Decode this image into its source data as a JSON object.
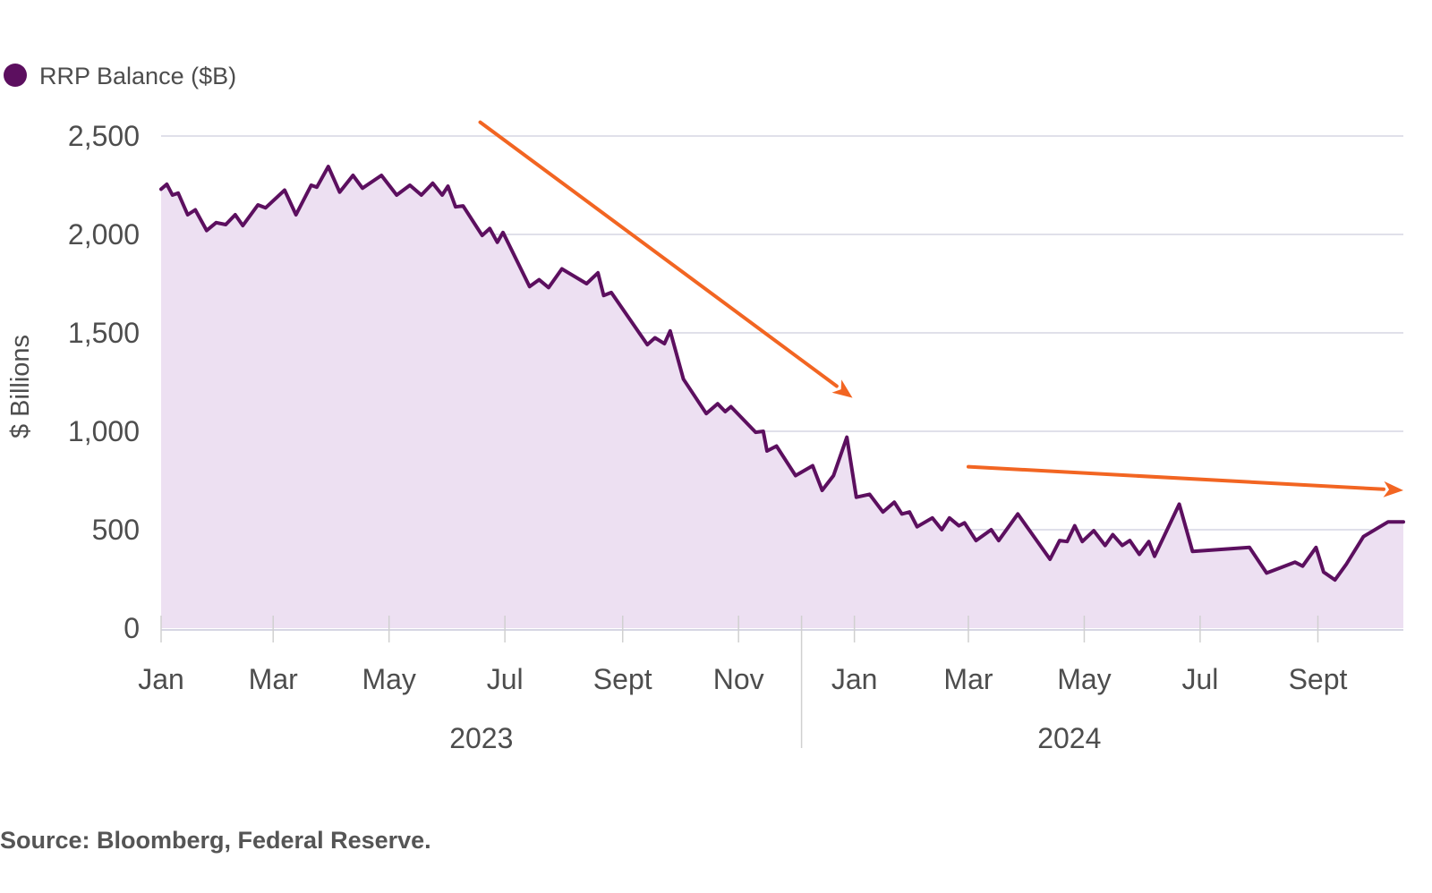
{
  "chart_data": {
    "type": "area",
    "legend": [
      {
        "name": "RRP Balance ($B)",
        "color": "#5c0f5f"
      }
    ],
    "legend_position": "top-left",
    "ylabel": "$ Billions",
    "ylim": [
      0,
      2500
    ],
    "yticks": [
      0,
      500,
      1000,
      1500,
      2000,
      2500
    ],
    "ytick_labels": [
      "0",
      "500",
      "1,000",
      "1,500",
      "2,000",
      "2,500"
    ],
    "grid": true,
    "xlim": [
      "2023-01-01",
      "2024-10-16"
    ],
    "xticks": [
      {
        "date": "2023-01-01",
        "label": "Jan"
      },
      {
        "date": "2023-03-01",
        "label": "Mar"
      },
      {
        "date": "2023-05-01",
        "label": "May"
      },
      {
        "date": "2023-07-01",
        "label": "Jul"
      },
      {
        "date": "2023-09-01",
        "label": "Sept"
      },
      {
        "date": "2023-11-01",
        "label": "Nov"
      },
      {
        "date": "2024-01-01",
        "label": "Jan"
      },
      {
        "date": "2024-03-01",
        "label": "Mar"
      },
      {
        "date": "2024-05-01",
        "label": "May"
      },
      {
        "date": "2024-07-01",
        "label": "Jul"
      },
      {
        "date": "2024-09-01",
        "label": "Sept"
      }
    ],
    "year_groups": [
      {
        "label": "2023",
        "start": "2023-01-01",
        "end": "2023-12-31"
      },
      {
        "label": "2024",
        "start": "2024-01-01",
        "end": "2024-10-16"
      }
    ],
    "series": [
      {
        "name": "RRP Balance ($B)",
        "color": "#5c0f5f",
        "fill": "#ede0f2",
        "points": [
          [
            "2023-01-01",
            2230
          ],
          [
            "2023-01-04",
            2255
          ],
          [
            "2023-01-07",
            2200
          ],
          [
            "2023-01-10",
            2210
          ],
          [
            "2023-01-15",
            2100
          ],
          [
            "2023-01-19",
            2125
          ],
          [
            "2023-01-25",
            2020
          ],
          [
            "2023-01-30",
            2060
          ],
          [
            "2023-02-04",
            2050
          ],
          [
            "2023-02-09",
            2100
          ],
          [
            "2023-02-13",
            2045
          ],
          [
            "2023-02-21",
            2150
          ],
          [
            "2023-02-25",
            2135
          ],
          [
            "2023-03-07",
            2225
          ],
          [
            "2023-03-13",
            2100
          ],
          [
            "2023-03-21",
            2250
          ],
          [
            "2023-03-24",
            2240
          ],
          [
            "2023-03-30",
            2345
          ],
          [
            "2023-04-05",
            2215
          ],
          [
            "2023-04-12",
            2300
          ],
          [
            "2023-04-17",
            2235
          ],
          [
            "2023-04-27",
            2300
          ],
          [
            "2023-05-05",
            2200
          ],
          [
            "2023-05-12",
            2250
          ],
          [
            "2023-05-18",
            2200
          ],
          [
            "2023-05-24",
            2260
          ],
          [
            "2023-05-29",
            2200
          ],
          [
            "2023-06-01",
            2245
          ],
          [
            "2023-06-05",
            2140
          ],
          [
            "2023-06-09",
            2145
          ],
          [
            "2023-06-19",
            1995
          ],
          [
            "2023-06-23",
            2030
          ],
          [
            "2023-06-27",
            1960
          ],
          [
            "2023-06-30",
            2010
          ],
          [
            "2023-07-14",
            1735
          ],
          [
            "2023-07-19",
            1770
          ],
          [
            "2023-07-24",
            1730
          ],
          [
            "2023-07-31",
            1825
          ],
          [
            "2023-08-13",
            1750
          ],
          [
            "2023-08-19",
            1805
          ],
          [
            "2023-08-22",
            1690
          ],
          [
            "2023-08-26",
            1705
          ],
          [
            "2023-09-14",
            1440
          ],
          [
            "2023-09-18",
            1475
          ],
          [
            "2023-09-23",
            1445
          ],
          [
            "2023-09-26",
            1510
          ],
          [
            "2023-10-03",
            1265
          ],
          [
            "2023-10-15",
            1090
          ],
          [
            "2023-10-21",
            1140
          ],
          [
            "2023-10-25",
            1100
          ],
          [
            "2023-10-28",
            1125
          ],
          [
            "2023-11-10",
            995
          ],
          [
            "2023-11-14",
            1000
          ],
          [
            "2023-11-16",
            900
          ],
          [
            "2023-11-21",
            925
          ],
          [
            "2023-12-01",
            775
          ],
          [
            "2023-12-10",
            825
          ],
          [
            "2023-12-15",
            700
          ],
          [
            "2023-12-21",
            775
          ],
          [
            "2023-12-28",
            970
          ],
          [
            "2024-01-02",
            665
          ],
          [
            "2024-01-09",
            680
          ],
          [
            "2024-01-16",
            590
          ],
          [
            "2024-01-22",
            640
          ],
          [
            "2024-01-26",
            580
          ],
          [
            "2024-01-30",
            590
          ],
          [
            "2024-02-03",
            515
          ],
          [
            "2024-02-11",
            560
          ],
          [
            "2024-02-16",
            500
          ],
          [
            "2024-02-20",
            560
          ],
          [
            "2024-02-25",
            520
          ],
          [
            "2024-02-28",
            535
          ],
          [
            "2024-03-05",
            445
          ],
          [
            "2024-03-13",
            500
          ],
          [
            "2024-03-17",
            445
          ],
          [
            "2024-03-27",
            580
          ],
          [
            "2024-04-13",
            350
          ],
          [
            "2024-04-18",
            445
          ],
          [
            "2024-04-22",
            440
          ],
          [
            "2024-04-26",
            520
          ],
          [
            "2024-04-30",
            440
          ],
          [
            "2024-05-06",
            495
          ],
          [
            "2024-05-12",
            420
          ],
          [
            "2024-05-16",
            475
          ],
          [
            "2024-05-21",
            420
          ],
          [
            "2024-05-25",
            445
          ],
          [
            "2024-05-30",
            375
          ],
          [
            "2024-06-04",
            440
          ],
          [
            "2024-06-07",
            365
          ],
          [
            "2024-06-20",
            630
          ],
          [
            "2024-06-27",
            390
          ],
          [
            "2024-07-27",
            410
          ],
          [
            "2024-08-05",
            280
          ],
          [
            "2024-08-20",
            335
          ],
          [
            "2024-08-24",
            315
          ],
          [
            "2024-08-31",
            410
          ],
          [
            "2024-09-04",
            285
          ],
          [
            "2024-09-10",
            245
          ],
          [
            "2024-09-16",
            325
          ],
          [
            "2024-09-25",
            465
          ],
          [
            "2024-10-08",
            540
          ]
        ]
      }
    ],
    "annotations": [
      {
        "type": "arrow",
        "color": "#f26522",
        "from": [
          "2023-06-18",
          2570
        ],
        "to": [
          "2023-12-31",
          1170
        ]
      },
      {
        "type": "arrow",
        "color": "#f26522",
        "from": [
          "2024-03-01",
          820
        ],
        "to": [
          "2024-10-16",
          700
        ]
      }
    ]
  },
  "source": "Source: Bloomberg, Federal Reserve."
}
